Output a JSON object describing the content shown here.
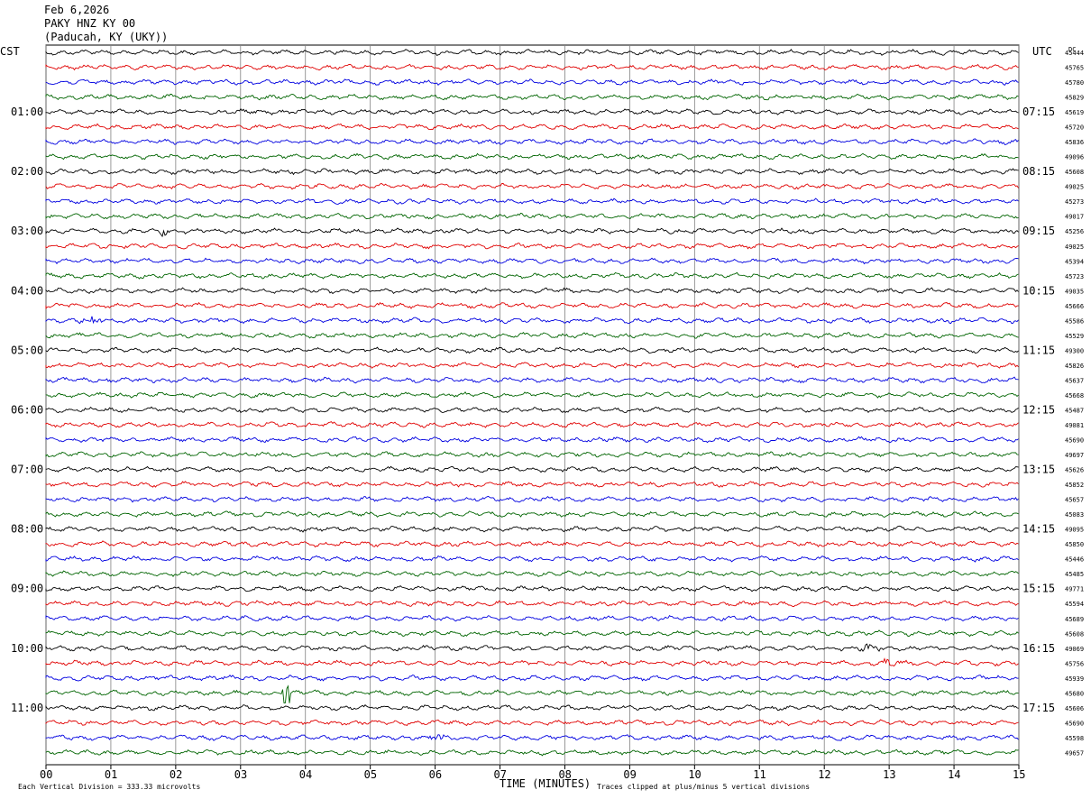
{
  "header": {
    "date": "Feb 6,2026",
    "station": "PAKY HNZ KY 00",
    "location": "(Paducah, KY (UKY))"
  },
  "left_zone": "CST",
  "right_zone": "UTC",
  "dc_label": "DC",
  "colors": {
    "cycle": [
      "#000000",
      "#e00000",
      "#0000e0",
      "#006400"
    ],
    "grid": "#808080"
  },
  "chart_data": {
    "type": "line",
    "title": "",
    "xlabel": "TIME (MINUTES)",
    "xlim": [
      0,
      15
    ],
    "x_ticks": [
      "00",
      "01",
      "02",
      "03",
      "04",
      "05",
      "06",
      "07",
      "08",
      "09",
      "10",
      "11",
      "12",
      "13",
      "14",
      "15"
    ],
    "rows_per_hour": 4,
    "minutes_per_row": 15,
    "num_traces": 48,
    "left_hour_labels": [
      "01:00",
      "02:00",
      "03:00",
      "04:00",
      "05:00",
      "06:00",
      "07:00",
      "08:00",
      "09:00",
      "10:00",
      "11:00"
    ],
    "right_hour_labels": [
      "07:15",
      "08:15",
      "09:15",
      "10:15",
      "11:15",
      "12:15",
      "13:15",
      "14:15",
      "15:15",
      "16:15",
      "17:15"
    ],
    "dc_offsets": [
      "45444",
      "45765",
      "45780",
      "45829",
      "45619",
      "45720",
      "45836",
      "49096",
      "45608",
      "49025",
      "45273",
      "49017",
      "45256",
      "49025",
      "45394",
      "45723",
      "49035",
      "45666",
      "45586",
      "45529",
      "49300",
      "45826",
      "45637",
      "45668",
      "45487",
      "49081",
      "45690",
      "49697",
      "45626",
      "45852",
      "45657",
      "45083",
      "49095",
      "45850",
      "45446",
      "45485",
      "49771",
      "45594",
      "45689",
      "45608",
      "49069",
      "45756",
      "45939",
      "45680",
      "45606",
      "45690",
      "45598",
      "49657"
    ],
    "events": [
      {
        "trace": 12,
        "minute": 1.8,
        "amplitude": "moderate"
      },
      {
        "trace": 18,
        "minute": 0.7,
        "amplitude": "moderate"
      },
      {
        "trace": 40,
        "minute": 12.7,
        "amplitude": "moderate"
      },
      {
        "trace": 41,
        "minute": 13.0,
        "amplitude": "moderate"
      },
      {
        "trace": 43,
        "minute": 3.7,
        "amplitude": "spike"
      },
      {
        "trace": 46,
        "minute": 6.0,
        "amplitude": "moderate"
      }
    ],
    "vertical_division_microvolts": 333.33,
    "clip_divisions": 5
  },
  "footer": {
    "scale_note": "Each Vertical Division =  333.33 microvolts",
    "clip_note": "Traces clipped at plus/minus 5 vertical divisions"
  }
}
